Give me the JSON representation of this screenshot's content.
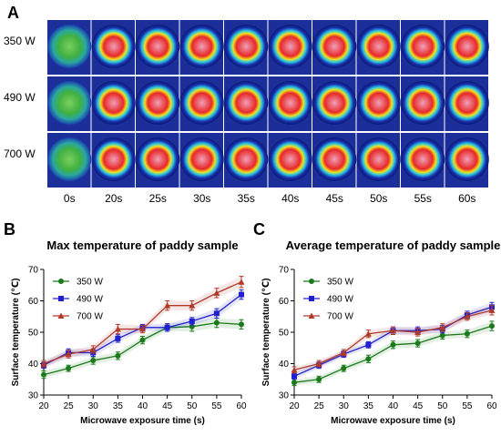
{
  "panels": {
    "a": "A",
    "b": "B",
    "c": "C"
  },
  "thermal": {
    "rows": [
      "350 W",
      "490 W",
      "700 W"
    ],
    "times": [
      "0s",
      "20s",
      "25s",
      "30s",
      "35s",
      "40s",
      "45s",
      "50s",
      "55s",
      "60s"
    ],
    "colors": {
      "cold": "#1a2fb0",
      "mid": "#28c8e0",
      "warm": "#f0e020",
      "hot": "#e82828",
      "core": "#f0a0b8"
    }
  },
  "chart_data": [
    {
      "type": "line",
      "title": "Max temperature of paddy sample",
      "xlabel": "Microwave exposure time (s)",
      "ylabel": "Surface temperature (℃)",
      "x": [
        20,
        25,
        30,
        35,
        40,
        45,
        50,
        55,
        60
      ],
      "xlim": [
        20,
        60
      ],
      "ylim": [
        30,
        70
      ],
      "xticks": [
        20,
        25,
        30,
        35,
        40,
        45,
        50,
        55,
        60
      ],
      "yticks": [
        30,
        40,
        50,
        60,
        70
      ],
      "legend_position": "top-left",
      "series": [
        {
          "name": "350 W",
          "color": "#1a7a1a",
          "marker": "circle",
          "values": [
            36.5,
            38.5,
            41,
            42.5,
            47.5,
            51.5,
            51.8,
            53,
            52.5
          ],
          "err": [
            1.2,
            1,
            1.2,
            1.2,
            1.2,
            1.2,
            1.5,
            1.5,
            1.5
          ]
        },
        {
          "name": "490 W",
          "color": "#2020d0",
          "marker": "square",
          "values": [
            39.5,
            43.5,
            43.5,
            48,
            51.5,
            51.5,
            53.5,
            56,
            62
          ],
          "err": [
            1,
            1.2,
            1.2,
            1.2,
            1,
            1.2,
            1.2,
            1.5,
            1.5
          ]
        },
        {
          "name": "700 W",
          "color": "#b03a2a",
          "marker": "triangle",
          "values": [
            40,
            43,
            44.5,
            51,
            51,
            58.5,
            58.5,
            62.5,
            66
          ],
          "err": [
            1,
            1.2,
            1.2,
            1.5,
            1.2,
            1.5,
            1.5,
            1.5,
            1.8
          ]
        }
      ]
    },
    {
      "type": "line",
      "title": "Average temperature of paddy sample",
      "xlabel": "Microwave exposure time (s)",
      "ylabel": "Surface temperature (℃)",
      "x": [
        20,
        25,
        30,
        35,
        40,
        45,
        50,
        55,
        60
      ],
      "xlim": [
        20,
        60
      ],
      "ylim": [
        30,
        70
      ],
      "xticks": [
        20,
        25,
        30,
        35,
        40,
        45,
        50,
        55,
        60
      ],
      "yticks": [
        30,
        40,
        50,
        60,
        70
      ],
      "legend_position": "top-left",
      "series": [
        {
          "name": "350 W",
          "color": "#1a7a1a",
          "marker": "circle",
          "values": [
            34,
            35,
            38.5,
            41.5,
            46,
            46.5,
            49,
            49.5,
            52
          ],
          "err": [
            1,
            1,
            1,
            1.2,
            1.2,
            1.2,
            1.2,
            1.2,
            1.5
          ]
        },
        {
          "name": "490 W",
          "color": "#2020d0",
          "marker": "square",
          "values": [
            36,
            39.5,
            43,
            46,
            50.5,
            50.5,
            51,
            55.5,
            58
          ],
          "err": [
            1,
            1,
            1,
            1,
            1.2,
            1.2,
            1.2,
            1.2,
            1.5
          ]
        },
        {
          "name": "700 W",
          "color": "#b03a2a",
          "marker": "triangle",
          "values": [
            38,
            40,
            43.5,
            49.5,
            50.5,
            50,
            51.5,
            55,
            57
          ],
          "err": [
            1,
            1,
            1,
            1.2,
            1.2,
            1.2,
            1.2,
            1.2,
            1.5
          ]
        }
      ]
    }
  ]
}
